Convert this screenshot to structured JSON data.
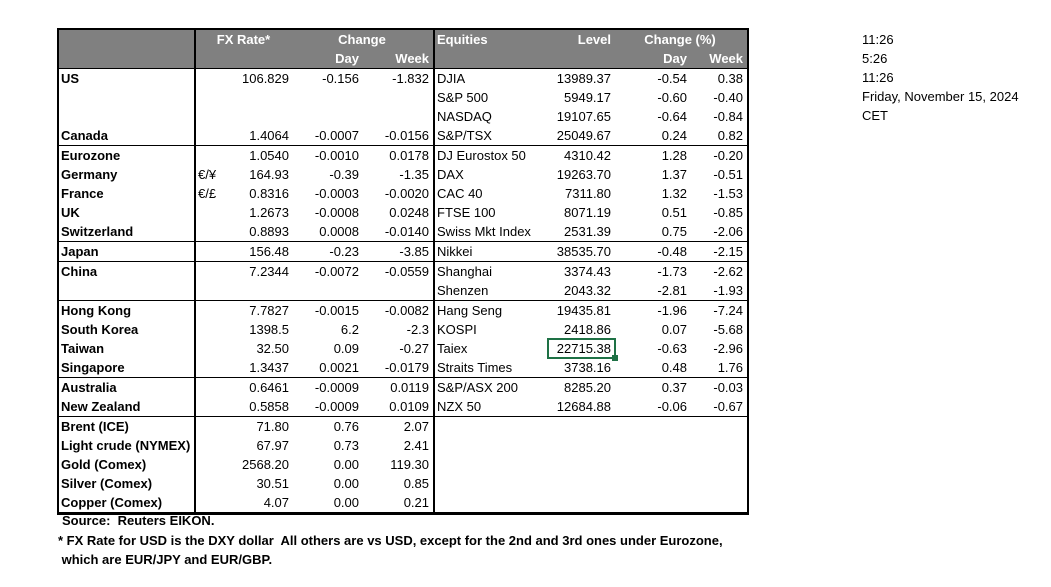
{
  "colors": {
    "header_bg": "#808080",
    "header_text": "#ffffff",
    "selection_green": "#1E7145",
    "grid_border": "#000000"
  },
  "table": {
    "header": {
      "fx_rate": "FX Rate*",
      "change": "Change",
      "day": "Day",
      "week": "Week",
      "equities": "Equities",
      "level": "Level",
      "change_pct": "Change (%)"
    },
    "rows": [
      {
        "name": "US",
        "pair": "",
        "fx": "106.829",
        "day": "-0.156",
        "week": "-1.832",
        "eq": "DJIA",
        "level": "13989.37",
        "eday": "-0.54",
        "eweek": "0.38"
      },
      {
        "name": "",
        "pair": "",
        "fx": "",
        "day": "",
        "week": "",
        "eq": "S&P 500",
        "level": "5949.17",
        "eday": "-0.60",
        "eweek": "-0.40"
      },
      {
        "name": "",
        "pair": "",
        "fx": "",
        "day": "",
        "week": "",
        "eq": "NASDAQ",
        "level": "19107.65",
        "eday": "-0.64",
        "eweek": "-0.84"
      },
      {
        "name": "Canada",
        "pair": "",
        "fx": "1.4064",
        "day": "-0.0007",
        "week": "-0.0156",
        "eq": "S&P/TSX",
        "level": "25049.67",
        "eday": "0.24",
        "eweek": "0.82"
      },
      {
        "name": "Eurozone",
        "bt": true,
        "pair": "",
        "fx": "1.0540",
        "day": "-0.0010",
        "week": "0.0178",
        "eq": "DJ Eurostox 50",
        "level": "4310.42",
        "eday": "1.28",
        "eweek": "-0.20"
      },
      {
        "name": "Germany",
        "ind": true,
        "pair": "€/¥",
        "fx": "164.93",
        "day": "-0.39",
        "week": "-1.35",
        "eq": "DAX",
        "level": "19263.70",
        "eday": "1.37",
        "eweek": "-0.51"
      },
      {
        "name": "France",
        "ind": true,
        "pair": "€/£",
        "fx": "0.8316",
        "day": "-0.0003",
        "week": "-0.0020",
        "eq": "CAC 40",
        "level": "7311.80",
        "eday": "1.32",
        "eweek": "-1.53"
      },
      {
        "name": "UK",
        "pair": "",
        "fx": "1.2673",
        "day": "-0.0008",
        "week": "0.0248",
        "eq": "FTSE 100",
        "level": "8071.19",
        "eday": "0.51",
        "eweek": "-0.85"
      },
      {
        "name": "Switzerland",
        "pair": "",
        "fx": "0.8893",
        "day": "0.0008",
        "week": "-0.0140",
        "eq": "Swiss Mkt Index",
        "level": "2531.39",
        "eday": "0.75",
        "eweek": "-2.06"
      },
      {
        "name": "Japan",
        "bt": true,
        "pair": "",
        "fx": "156.48",
        "day": "-0.23",
        "week": "-3.85",
        "eq": "Nikkei",
        "level": "38535.70",
        "eday": "-0.48",
        "eweek": "-2.15"
      },
      {
        "name": "China",
        "bt": true,
        "pair": "",
        "fx": "7.2344",
        "day": "-0.0072",
        "week": "-0.0559",
        "eq": "Shanghai",
        "level": "3374.43",
        "eday": "-1.73",
        "eweek": "-2.62"
      },
      {
        "name": "",
        "pair": "",
        "fx": "",
        "day": "",
        "week": "",
        "eq": "Shenzen",
        "level": "2043.32",
        "eday": "-2.81",
        "eweek": "-1.93"
      },
      {
        "name": "Hong Kong",
        "bt": true,
        "pair": "",
        "fx": "7.7827",
        "day": "-0.0015",
        "week": "-0.0082",
        "eq": "Hang Seng",
        "level": "19435.81",
        "eday": "-1.96",
        "eweek": "-7.24"
      },
      {
        "name": "South Korea",
        "pair": "",
        "fx": "1398.5",
        "day": "6.2",
        "week": "-2.3",
        "eq": "KOSPI",
        "level": "2418.86",
        "eday": "0.07",
        "eweek": "-5.68"
      },
      {
        "name": "Taiwan",
        "pair": "",
        "fx": "32.50",
        "day": "0.09",
        "week": "-0.27",
        "eq": "Taiex",
        "level": "22715.38",
        "sel": true,
        "eday": "-0.63",
        "eweek": "-2.96"
      },
      {
        "name": "Singapore",
        "pair": "",
        "fx": "1.3437",
        "day": "0.0021",
        "week": "-0.0179",
        "eq": "Straits Times",
        "level": "3738.16",
        "eday": "0.48",
        "eweek": "1.76"
      },
      {
        "name": "Australia",
        "bt": true,
        "pair": "",
        "fx": "0.6461",
        "day": "-0.0009",
        "week": "0.0119",
        "eq": "S&P/ASX  200",
        "level": "8285.20",
        "eday": "0.37",
        "eweek": "-0.03"
      },
      {
        "name": "New Zealand",
        "pair": "",
        "fx": "0.5858",
        "day": "-0.0009",
        "week": "0.0109",
        "eq": "NZX 50",
        "level": "12684.88",
        "eday": "-0.06",
        "eweek": "-0.67"
      },
      {
        "name": "Brent (ICE)",
        "bt": true,
        "pair": "",
        "fx": "71.80",
        "day": "0.76",
        "week": "2.07",
        "eq": "",
        "level": "",
        "eday": "",
        "eweek": ""
      },
      {
        "name": "Light crude (NYMEX)",
        "pair": "",
        "fx": "67.97",
        "day": "0.73",
        "week": "2.41",
        "eq": "",
        "level": "",
        "eday": "",
        "eweek": ""
      },
      {
        "name": "Gold (Comex)",
        "pair": "",
        "fx": "2568.20",
        "day": "0.00",
        "week": "119.30",
        "eq": "",
        "level": "",
        "eday": "",
        "eweek": ""
      },
      {
        "name": "Silver (Comex)",
        "pair": "",
        "fx": "30.51",
        "day": "0.00",
        "week": "0.85",
        "eq": "",
        "level": "",
        "eday": "",
        "eweek": ""
      },
      {
        "name": "Copper (Comex)",
        "pair": "",
        "fx": "4.07",
        "day": "0.00",
        "week": "0.21",
        "eq": "",
        "level": "",
        "eday": "",
        "eweek": ""
      }
    ]
  },
  "clock": {
    "lines": [
      "11:26",
      "5:26",
      "11:26",
      "Friday, November 15, 2024",
      "CET"
    ]
  },
  "footnotes": [
    "Source:  Reuters EIKON.",
    "* FX Rate for USD is the DXY dollar  All others are vs USD, except for the 2nd and 3rd ones under Eurozone,",
    " which are EUR/JPY and EUR/GBP."
  ]
}
